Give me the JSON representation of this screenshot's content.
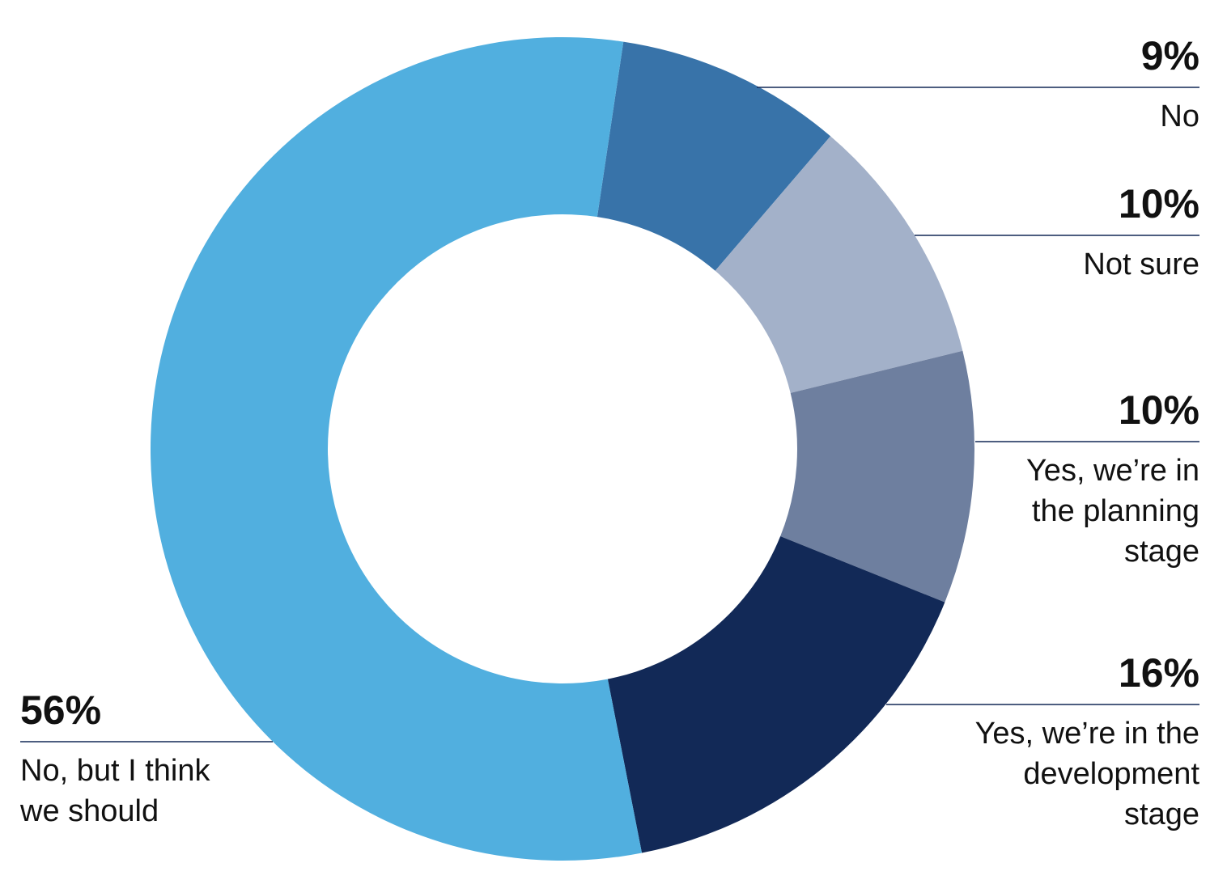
{
  "chart_data": {
    "type": "pie",
    "donut": true,
    "legend": "none",
    "slices": [
      {
        "label": "No",
        "value": 9,
        "value_label": "9%",
        "color": "#3873A9",
        "label_lines": [
          "No"
        ]
      },
      {
        "label": "Not sure",
        "value": 10,
        "value_label": "10%",
        "color": "#A3B1C9",
        "label_lines": [
          "Not sure"
        ]
      },
      {
        "label": "Yes, we’re in the planning stage",
        "value": 10,
        "value_label": "10%",
        "color": "#6E7F9F",
        "label_lines": [
          "Yes, we’re in",
          "the planning",
          "stage"
        ]
      },
      {
        "label": "Yes, we’re in the development stage",
        "value": 16,
        "value_label": "16%",
        "color": "#122957",
        "label_lines": [
          "Yes, we’re in the",
          "development",
          "stage"
        ]
      },
      {
        "label": "No, but I think we should",
        "value": 56,
        "value_label": "56%",
        "color": "#51AFDF",
        "label_lines": [
          "No, but I think",
          "we should"
        ]
      }
    ]
  }
}
